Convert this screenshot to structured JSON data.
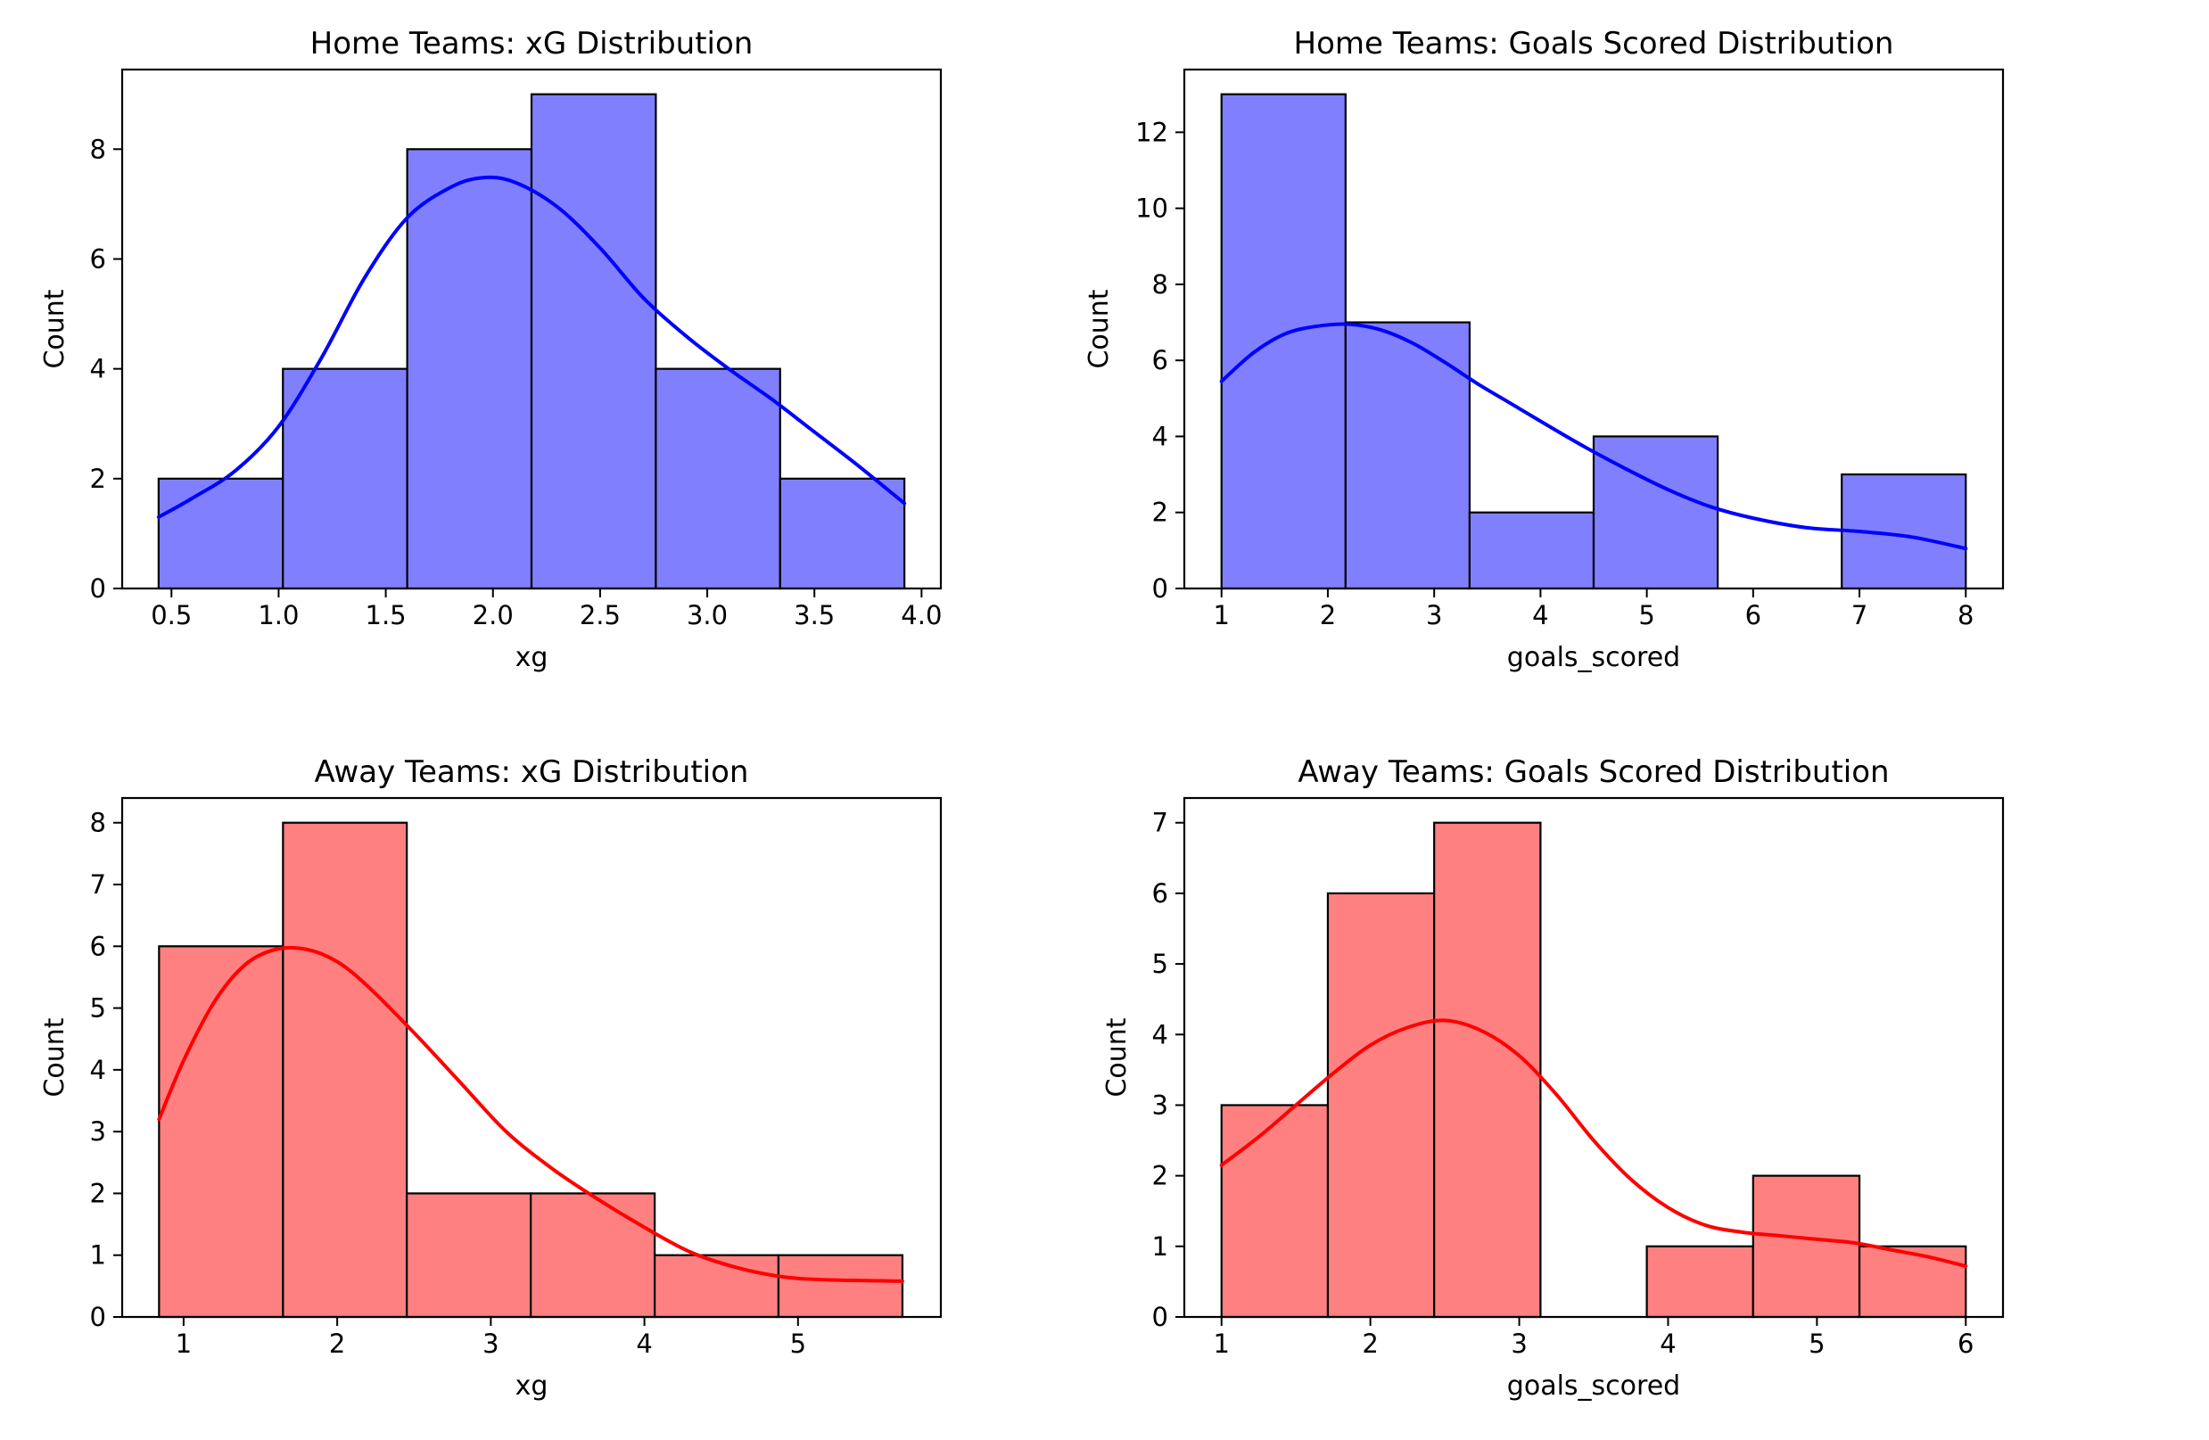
{
  "chart_data": [
    {
      "type": "bar",
      "title": "Home Teams: xG Distribution",
      "xlabel": "xg",
      "ylabel": "Count",
      "xlim": [
        0.27,
        4.09
      ],
      "ylim": [
        0,
        9.45
      ],
      "xticks": [
        0.5,
        1.0,
        1.5,
        2.0,
        2.5,
        3.0,
        3.5,
        4.0
      ],
      "xtick_labels": [
        "0.5",
        "1.0",
        "1.5",
        "2.0",
        "2.5",
        "3.0",
        "3.5",
        "4.0"
      ],
      "yticks": [
        0,
        2,
        4,
        6,
        8
      ],
      "ytick_labels": [
        "0",
        "2",
        "4",
        "6",
        "8"
      ],
      "bin_edges": [
        0.44,
        1.02,
        1.6,
        2.18,
        2.76,
        3.34,
        3.92
      ],
      "values": [
        2,
        4,
        8,
        9,
        4,
        2
      ],
      "bar_color": "#8080ff",
      "kde_color": "#0000ff",
      "kde": {
        "x": [
          0.44,
          0.6,
          0.8,
          1.0,
          1.2,
          1.4,
          1.6,
          1.8,
          1.95,
          2.1,
          2.3,
          2.5,
          2.7,
          2.9,
          3.1,
          3.3,
          3.5,
          3.7,
          3.92
        ],
        "y": [
          1.3,
          1.65,
          2.15,
          2.95,
          4.2,
          5.65,
          6.75,
          7.3,
          7.48,
          7.4,
          6.95,
          6.2,
          5.3,
          4.6,
          4.0,
          3.45,
          2.85,
          2.25,
          1.55
        ]
      },
      "grid": false
    },
    {
      "type": "bar",
      "title": "Home Teams: Goals Scored Distribution",
      "xlabel": "goals_scored",
      "ylabel": "Count",
      "xlim": [
        0.65,
        8.35
      ],
      "ylim": [
        0,
        13.65
      ],
      "xticks": [
        1,
        2,
        3,
        4,
        5,
        6,
        7,
        8
      ],
      "xtick_labels": [
        "1",
        "2",
        "3",
        "4",
        "5",
        "6",
        "7",
        "8"
      ],
      "yticks": [
        0,
        2,
        4,
        6,
        8,
        10,
        12
      ],
      "ytick_labels": [
        "0",
        "2",
        "4",
        "6",
        "8",
        "10",
        "12"
      ],
      "bin_edges": [
        1.0,
        2.1667,
        3.3333,
        4.5,
        5.6667,
        6.8333,
        8.0
      ],
      "values": [
        13,
        7,
        2,
        4,
        0,
        3
      ],
      "bar_color": "#8080ff",
      "kde_color": "#0000ff",
      "kde": {
        "x": [
          1.0,
          1.3,
          1.6,
          1.9,
          2.2,
          2.5,
          2.8,
          3.1,
          3.4,
          3.7,
          4.0,
          4.4,
          4.8,
          5.2,
          5.6,
          6.0,
          6.5,
          7.0,
          7.5,
          8.0
        ],
        "y": [
          5.45,
          6.2,
          6.7,
          6.9,
          6.95,
          6.8,
          6.45,
          5.95,
          5.4,
          4.9,
          4.4,
          3.75,
          3.15,
          2.6,
          2.15,
          1.85,
          1.6,
          1.5,
          1.35,
          1.05
        ]
      },
      "grid": false
    },
    {
      "type": "bar",
      "title": "Away Teams: xG Distribution",
      "xlabel": "xg",
      "ylabel": "Count",
      "xlim": [
        0.6,
        5.93
      ],
      "ylim": [
        0,
        8.4
      ],
      "xticks": [
        1,
        2,
        3,
        4,
        5
      ],
      "xtick_labels": [
        "1",
        "2",
        "3",
        "4",
        "5"
      ],
      "yticks": [
        0,
        1,
        2,
        3,
        4,
        5,
        6,
        7,
        8
      ],
      "ytick_labels": [
        "0",
        "1",
        "2",
        "3",
        "4",
        "5",
        "6",
        "7",
        "8"
      ],
      "bin_edges": [
        0.84,
        1.647,
        2.453,
        3.26,
        4.067,
        4.873,
        5.68
      ],
      "values": [
        6,
        8,
        2,
        2,
        1,
        1
      ],
      "bar_color": "#ff8080",
      "kde_color": "#ff0000",
      "kde": {
        "x": [
          0.84,
          1.0,
          1.2,
          1.4,
          1.6,
          1.8,
          2.0,
          2.2,
          2.5,
          2.8,
          3.1,
          3.4,
          3.7,
          4.0,
          4.3,
          4.6,
          4.9,
          5.2,
          5.68
        ],
        "y": [
          3.2,
          4.15,
          5.1,
          5.7,
          5.95,
          5.95,
          5.75,
          5.35,
          4.6,
          3.8,
          3.0,
          2.4,
          1.9,
          1.45,
          1.05,
          0.8,
          0.65,
          0.6,
          0.58
        ]
      },
      "grid": false
    },
    {
      "type": "bar",
      "title": "Away Teams: Goals Scored Distribution",
      "xlabel": "goals_scored",
      "ylabel": "Count",
      "xlim": [
        0.75,
        6.25
      ],
      "ylim": [
        0,
        7.35
      ],
      "xticks": [
        1,
        2,
        3,
        4,
        5,
        6
      ],
      "xtick_labels": [
        "1",
        "2",
        "3",
        "4",
        "5",
        "6"
      ],
      "yticks": [
        0,
        1,
        2,
        3,
        4,
        5,
        6,
        7
      ],
      "ytick_labels": [
        "0",
        "1",
        "2",
        "3",
        "4",
        "5",
        "6",
        "7"
      ],
      "bin_edges": [
        1.0,
        1.7143,
        2.4286,
        3.1429,
        3.8571,
        4.5714,
        5.2857,
        6.0
      ],
      "values": [
        3,
        6,
        7,
        0,
        1,
        2,
        1
      ],
      "bar_color": "#ff8080",
      "kde_color": "#ff0000",
      "kde": {
        "x": [
          1.0,
          1.25,
          1.5,
          1.75,
          2.0,
          2.25,
          2.5,
          2.75,
          3.0,
          3.25,
          3.5,
          3.75,
          4.0,
          4.25,
          4.5,
          4.75,
          5.0,
          5.25,
          5.5,
          5.75,
          6.0
        ],
        "y": [
          2.15,
          2.55,
          3.0,
          3.45,
          3.85,
          4.1,
          4.2,
          4.05,
          3.7,
          3.15,
          2.5,
          1.95,
          1.55,
          1.3,
          1.2,
          1.15,
          1.1,
          1.05,
          0.95,
          0.85,
          0.72
        ]
      },
      "grid": false
    }
  ]
}
